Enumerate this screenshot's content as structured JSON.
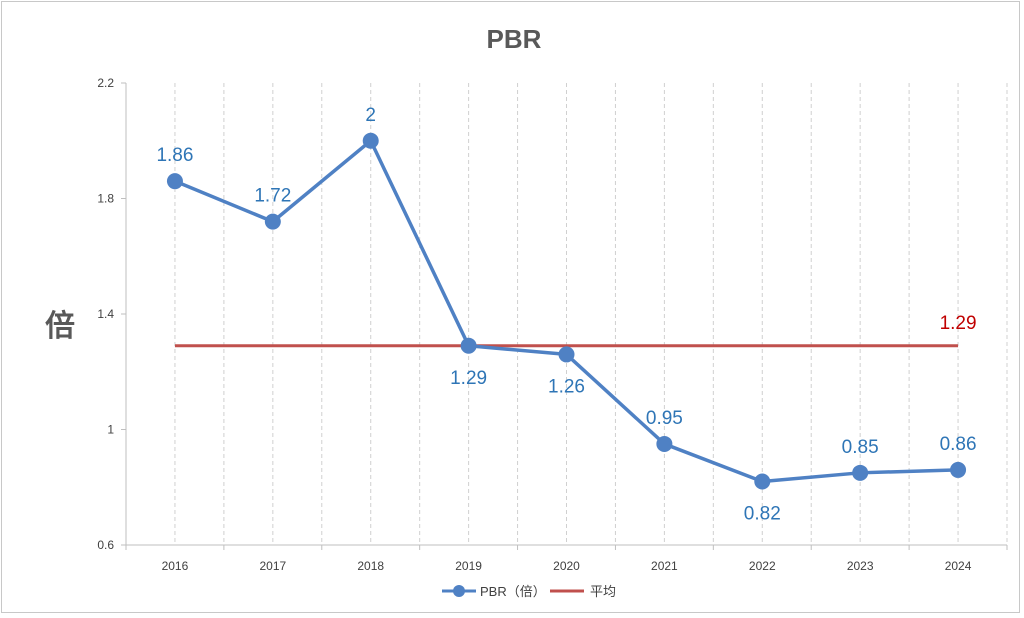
{
  "chart_data": {
    "type": "line",
    "title": "PBR",
    "ylabel": "倍",
    "xlabel": "",
    "categories": [
      "2016",
      "2017",
      "2018",
      "2019",
      "2020",
      "2021",
      "2022",
      "2023",
      "2024"
    ],
    "series": [
      {
        "name": "PBR（倍）",
        "values": [
          1.86,
          1.72,
          2,
          1.29,
          1.26,
          0.95,
          0.82,
          0.85,
          0.86
        ],
        "color": "#4f81c4",
        "label_color": "#2e75b6"
      },
      {
        "name": "平均",
        "values": [
          1.29,
          1.29,
          1.29,
          1.29,
          1.29,
          1.29,
          1.29,
          1.29,
          1.29
        ],
        "color": "#c0504d",
        "label_color": "#c00000",
        "label": "1.29"
      }
    ],
    "ylim": [
      0.6,
      2.2
    ],
    "yticks": [
      "0.6",
      "1",
      "1.4",
      "1.8",
      "2.2"
    ],
    "data_labels": [
      "1.86",
      "1.72",
      "2",
      "1.29",
      "1.26",
      "0.95",
      "0.82",
      "0.85",
      "0.86"
    ],
    "grid": "vertical dashed",
    "legend_position": "bottom"
  }
}
